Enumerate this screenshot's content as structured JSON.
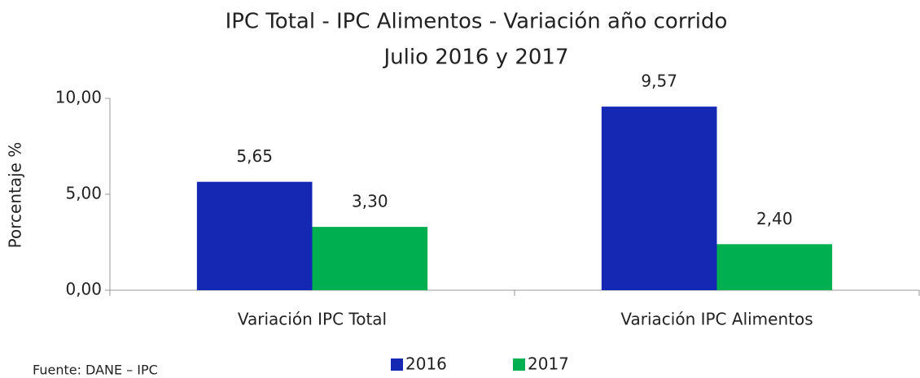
{
  "chart_data": {
    "type": "bar",
    "title": [
      "IPC Total - IPC Alimentos - Variación año corrido",
      "Julio 2016 y 2017"
    ],
    "y_label": "Porcentaje %",
    "categories": [
      "Variación IPC Total",
      "Variación IPC Alimentos"
    ],
    "series": [
      {
        "name": "2016",
        "color": "#1428b4",
        "values": [
          5.65,
          9.57
        ],
        "value_labels": [
          "5,65",
          "9,57"
        ]
      },
      {
        "name": "2017",
        "color": "#00b050",
        "values": [
          3.3,
          2.4
        ],
        "value_labels": [
          "3,30",
          "2,40"
        ]
      }
    ],
    "ylim": [
      0,
      10
    ],
    "yticks": [
      {
        "value": 0,
        "label": "0,00"
      },
      {
        "value": 5,
        "label": "5,00"
      },
      {
        "value": 10,
        "label": "10,00"
      }
    ],
    "source": "Fuente: DANE – IPC",
    "legend": "bottom"
  }
}
